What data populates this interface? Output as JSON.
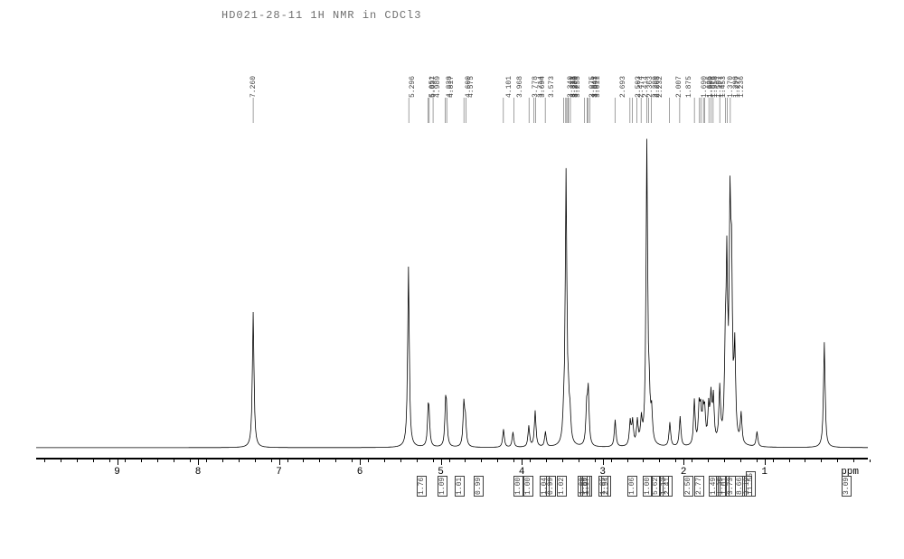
{
  "title": "HD021-28-11   1H NMR in CDCl3",
  "axis_label": "ppm",
  "background": "#ffffff",
  "line_color": "#000000",
  "label_color": "#404040",
  "title_color": "#707070",
  "axis_fontsize": 11,
  "peak_fontsize": 8,
  "title_fontsize": 12,
  "xlim": [
    10.0,
    -0.5
  ],
  "xtick_positions": [
    9,
    8,
    7,
    6,
    5,
    4,
    3,
    2,
    1
  ],
  "minor_tick_step": 0.2,
  "baseline_y": 0.97,
  "peak_labels": [
    7.26,
    5.296,
    5.051,
    5.037,
    4.838,
    4.817,
    4.6,
    4.575,
    4.101,
    4.989,
    3.968,
    3.778,
    3.714,
    3.694,
    3.573,
    3.313,
    3.34,
    3.311,
    3.289,
    3.279,
    3.255,
    3.075,
    3.043,
    3.031,
    3.011,
    2.693,
    2.503,
    2.474,
    2.414,
    2.363,
    2.289,
    2.265,
    2.232,
    2.007,
    1.875,
    1.69,
    1.625,
    1.609,
    1.576,
    1.558,
    1.507,
    1.477,
    1.453,
    1.37,
    1.298,
    1.236,
    1.277
  ],
  "integrals": [
    {
      "ppm": 5.3,
      "value": "1.76"
    },
    {
      "ppm": 5.04,
      "value": "1.09"
    },
    {
      "ppm": 4.83,
      "value": "1.01"
    },
    {
      "ppm": 4.59,
      "value": "0.99"
    },
    {
      "ppm": 4.1,
      "value": "1.00"
    },
    {
      "ppm": 3.98,
      "value": "1.00"
    },
    {
      "ppm": 3.78,
      "value": "1.04"
    },
    {
      "ppm": 3.7,
      "value": "0.99"
    },
    {
      "ppm": 3.57,
      "value": "1.02"
    },
    {
      "ppm": 3.31,
      "value": "1.09"
    },
    {
      "ppm": 3.28,
      "value": "1.00"
    },
    {
      "ppm": 3.25,
      "value": "1.07"
    },
    {
      "ppm": 3.05,
      "value": "1.05"
    },
    {
      "ppm": 3.02,
      "value": "2.94"
    },
    {
      "ppm": 2.69,
      "value": "1.06"
    },
    {
      "ppm": 2.5,
      "value": "1.00"
    },
    {
      "ppm": 2.4,
      "value": "5.62"
    },
    {
      "ppm": 2.3,
      "value": "1.13"
    },
    {
      "ppm": 2.26,
      "value": "2.41"
    },
    {
      "ppm": 2.0,
      "value": "2.50"
    },
    {
      "ppm": 1.87,
      "value": "2.77"
    },
    {
      "ppm": 1.69,
      "value": "1.49"
    },
    {
      "ppm": 1.6,
      "value": "1.35"
    },
    {
      "ppm": 1.55,
      "value": "1.01"
    },
    {
      "ppm": 1.48,
      "value": "3.73"
    },
    {
      "ppm": 1.37,
      "value": "8.66"
    },
    {
      "ppm": 1.28,
      "value": "3.19"
    },
    {
      "ppm": 1.23,
      "value": "11.55"
    },
    {
      "ppm": 0.05,
      "value": "3.09"
    }
  ],
  "spectrum_peaks": [
    {
      "ppm": 7.26,
      "h": 0.45
    },
    {
      "ppm": 5.3,
      "h": 0.6
    },
    {
      "ppm": 5.05,
      "h": 0.1
    },
    {
      "ppm": 5.04,
      "h": 0.08
    },
    {
      "ppm": 4.83,
      "h": 0.12
    },
    {
      "ppm": 4.82,
      "h": 0.09
    },
    {
      "ppm": 4.6,
      "h": 0.14
    },
    {
      "ppm": 4.58,
      "h": 0.08
    },
    {
      "ppm": 4.1,
      "h": 0.06
    },
    {
      "ppm": 3.98,
      "h": 0.05
    },
    {
      "ppm": 3.78,
      "h": 0.07
    },
    {
      "ppm": 3.7,
      "h": 0.12
    },
    {
      "ppm": 3.57,
      "h": 0.05
    },
    {
      "ppm": 3.34,
      "h": 0.06
    },
    {
      "ppm": 3.31,
      "h": 0.9
    },
    {
      "ppm": 3.28,
      "h": 0.1
    },
    {
      "ppm": 3.26,
      "h": 0.08
    },
    {
      "ppm": 3.05,
      "h": 0.12
    },
    {
      "ppm": 3.03,
      "h": 0.18
    },
    {
      "ppm": 2.69,
      "h": 0.09
    },
    {
      "ppm": 2.5,
      "h": 0.08
    },
    {
      "ppm": 2.47,
      "h": 0.08
    },
    {
      "ppm": 2.41,
      "h": 0.08
    },
    {
      "ppm": 2.36,
      "h": 0.08
    },
    {
      "ppm": 2.29,
      "h": 1.0
    },
    {
      "ppm": 2.26,
      "h": 0.12
    },
    {
      "ppm": 2.23,
      "h": 0.1
    },
    {
      "ppm": 2.0,
      "h": 0.08
    },
    {
      "ppm": 1.87,
      "h": 0.1
    },
    {
      "ppm": 1.69,
      "h": 0.15
    },
    {
      "ppm": 1.63,
      "h": 0.12
    },
    {
      "ppm": 1.61,
      "h": 0.1
    },
    {
      "ppm": 1.58,
      "h": 0.1
    },
    {
      "ppm": 1.56,
      "h": 0.1
    },
    {
      "ppm": 1.51,
      "h": 0.12
    },
    {
      "ppm": 1.48,
      "h": 0.15
    },
    {
      "ppm": 1.45,
      "h": 0.15
    },
    {
      "ppm": 1.37,
      "h": 0.18
    },
    {
      "ppm": 1.3,
      "h": 0.25
    },
    {
      "ppm": 1.28,
      "h": 0.55
    },
    {
      "ppm": 1.24,
      "h": 0.7
    },
    {
      "ppm": 1.22,
      "h": 0.5
    },
    {
      "ppm": 1.18,
      "h": 0.3
    },
    {
      "ppm": 1.1,
      "h": 0.1
    },
    {
      "ppm": 0.9,
      "h": 0.05
    },
    {
      "ppm": 0.05,
      "h": 0.35
    }
  ]
}
